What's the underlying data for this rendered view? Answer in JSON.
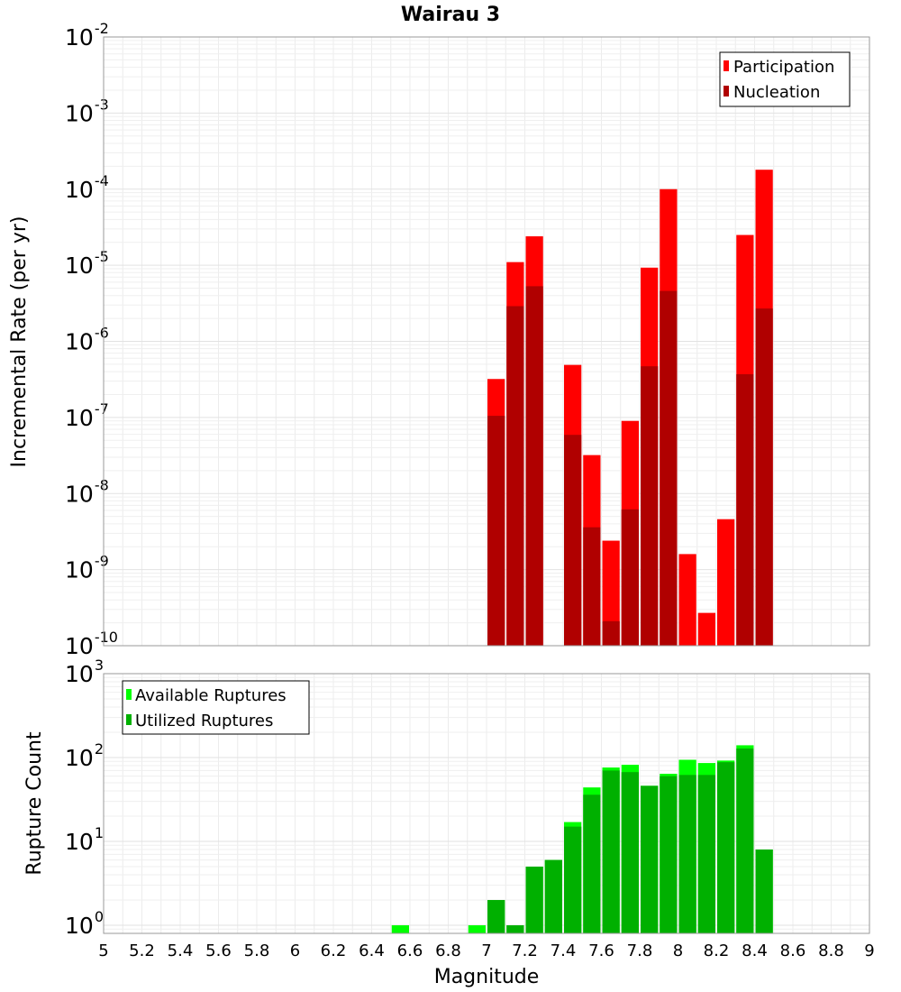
{
  "chart_data": [
    {
      "type": "bar",
      "title": "Wairau 3",
      "xlabel": "",
      "ylabel": "Incremental Rate (per yr)",
      "yscale": "log",
      "ylim": [
        1e-10,
        0.01
      ],
      "xlim": [
        5,
        9
      ],
      "bin_width": 0.1,
      "grid": true,
      "legend_position": "top-right",
      "y_ticks": [
        {
          "base": "10",
          "exp": "-10",
          "value": 1e-10
        },
        {
          "base": "10",
          "exp": "-9",
          "value": 1e-09
        },
        {
          "base": "10",
          "exp": "-8",
          "value": 1e-08
        },
        {
          "base": "10",
          "exp": "-7",
          "value": 1e-07
        },
        {
          "base": "10",
          "exp": "-6",
          "value": 1e-06
        },
        {
          "base": "10",
          "exp": "-5",
          "value": 1e-05
        },
        {
          "base": "10",
          "exp": "-4",
          "value": 0.0001
        },
        {
          "base": "10",
          "exp": "-3",
          "value": 0.001
        },
        {
          "base": "10",
          "exp": "-2",
          "value": 0.01
        }
      ],
      "series": [
        {
          "name": "Participation",
          "color": "#ff0000",
          "x": [
            7.05,
            7.15,
            7.25,
            7.45,
            7.55,
            7.65,
            7.75,
            7.85,
            7.95,
            8.05,
            8.15,
            8.25,
            8.35,
            8.45
          ],
          "values": [
            3.2e-07,
            1.1e-05,
            2.4e-05,
            4.9e-07,
            3.2e-08,
            2.4e-09,
            9e-08,
            9.3e-06,
            0.0001,
            1.6e-09,
            2.7e-10,
            4.6e-09,
            2.5e-05,
            0.00018
          ]
        },
        {
          "name": "Nucleation",
          "color": "#b00000",
          "x": [
            7.05,
            7.15,
            7.25,
            7.45,
            7.55,
            7.65,
            7.75,
            7.85,
            7.95,
            8.35,
            8.45
          ],
          "values": [
            1.05e-07,
            2.9e-06,
            5.3e-06,
            5.9e-08,
            3.6e-09,
            2.1e-10,
            6.2e-09,
            4.7e-07,
            4.6e-06,
            3.7e-07,
            2.7e-06
          ]
        }
      ]
    },
    {
      "type": "bar",
      "title": "",
      "xlabel": "Magnitude",
      "ylabel": "Rupture Count",
      "yscale": "log",
      "ylim": [
        0.8,
        1000
      ],
      "xlim": [
        5,
        9
      ],
      "bin_width": 0.1,
      "grid": true,
      "legend_position": "top-left",
      "y_ticks": [
        {
          "base": "10",
          "exp": "0",
          "value": 1
        },
        {
          "base": "10",
          "exp": "1",
          "value": 10
        },
        {
          "base": "10",
          "exp": "2",
          "value": 100
        },
        {
          "base": "10",
          "exp": "3",
          "value": 1000
        }
      ],
      "x_ticks": [
        "5",
        "5.2",
        "5.4",
        "5.6",
        "5.8",
        "6",
        "6.2",
        "6.4",
        "6.6",
        "6.8",
        "7",
        "7.2",
        "7.4",
        "7.6",
        "7.8",
        "8",
        "8.2",
        "8.4",
        "8.6",
        "8.8",
        "9"
      ],
      "series": [
        {
          "name": "Available Ruptures",
          "color": "#00ff00",
          "x": [
            6.55,
            6.95,
            7.05,
            7.15,
            7.25,
            7.35,
            7.45,
            7.55,
            7.65,
            7.75,
            7.85,
            7.95,
            8.05,
            8.15,
            8.25,
            8.35,
            8.45
          ],
          "values": [
            1,
            1,
            2,
            1,
            5,
            6,
            17,
            44,
            76,
            82,
            46,
            64,
            94,
            86,
            92,
            140,
            8
          ]
        },
        {
          "name": "Utilized Ruptures",
          "color": "#00b000",
          "x": [
            7.05,
            7.15,
            7.25,
            7.35,
            7.45,
            7.55,
            7.65,
            7.75,
            7.85,
            7.95,
            8.05,
            8.15,
            8.25,
            8.35,
            8.45
          ],
          "values": [
            2,
            1,
            5,
            6,
            15,
            36,
            70,
            67,
            46,
            60,
            62,
            62,
            88,
            128,
            8
          ]
        }
      ]
    }
  ]
}
